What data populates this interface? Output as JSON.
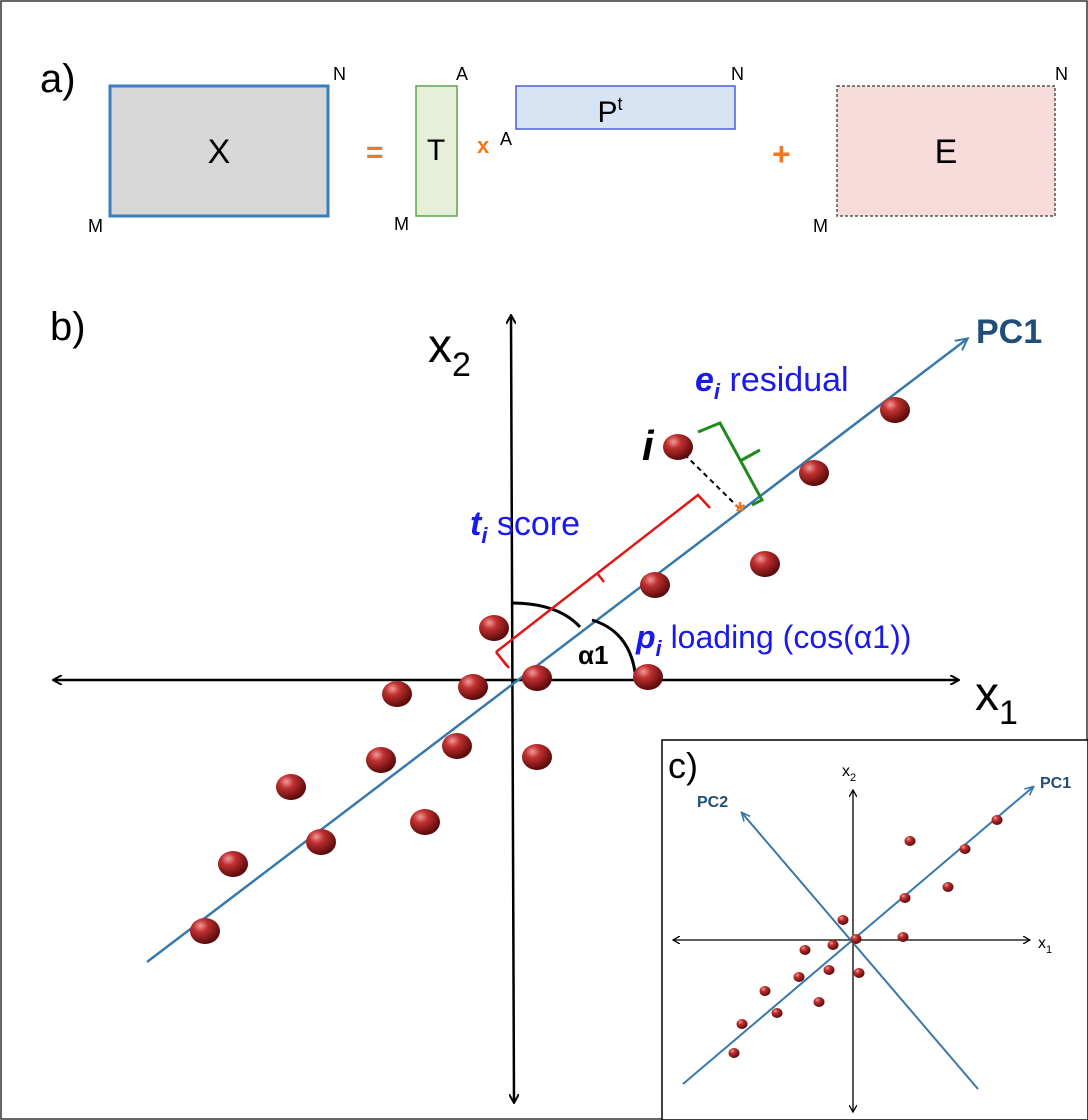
{
  "panel_a": {
    "label": "a)",
    "X": {
      "label": "X",
      "rows": "M",
      "cols": "N",
      "fill": "#d8d8d8",
      "stroke": "#3a7ec0"
    },
    "equals": "=",
    "T": {
      "label": "T",
      "rows": "M",
      "cols": "A",
      "fill": "#e6f0d8",
      "stroke": "#5aa64a"
    },
    "times": "x",
    "P": {
      "label": "P",
      "superscript": "t",
      "rows": "A",
      "cols": "N",
      "fill": "#d7e4f3",
      "stroke": "#4a5fd8"
    },
    "plus": "+",
    "E": {
      "label": "E",
      "rows": "M",
      "cols": "N",
      "fill": "#f8dcdc",
      "stroke": "#555555"
    }
  },
  "panel_b": {
    "label": "b)",
    "x_axis": {
      "label": "x",
      "subscript": "1"
    },
    "y_axis": {
      "label": "x",
      "subscript": "2"
    },
    "pc1_label": "PC1",
    "point_label": "i",
    "residual": {
      "symbol": "e",
      "subscript": "i",
      "text": " residual"
    },
    "score": {
      "symbol": "t",
      "subscript": "i",
      "text": " score"
    },
    "loading": {
      "symbol": "p",
      "subscript": "i",
      "text": " loading (cos(α1))"
    },
    "angle_label": "α1"
  },
  "panel_c": {
    "label": "c)",
    "x_axis": {
      "label": "x",
      "subscript": "1"
    },
    "y_axis": {
      "label": "x",
      "subscript": "2"
    },
    "pc1_label": "PC1",
    "pc2_label": "PC2"
  },
  "colors": {
    "pc_line": "#3878ad",
    "pc_text": "#1f4e79",
    "blue_text": "#1a1aee",
    "orange": "#f07820",
    "residual_brace": "#1f8a1f",
    "score_brace": "#e01818",
    "point": "#b22424"
  }
}
